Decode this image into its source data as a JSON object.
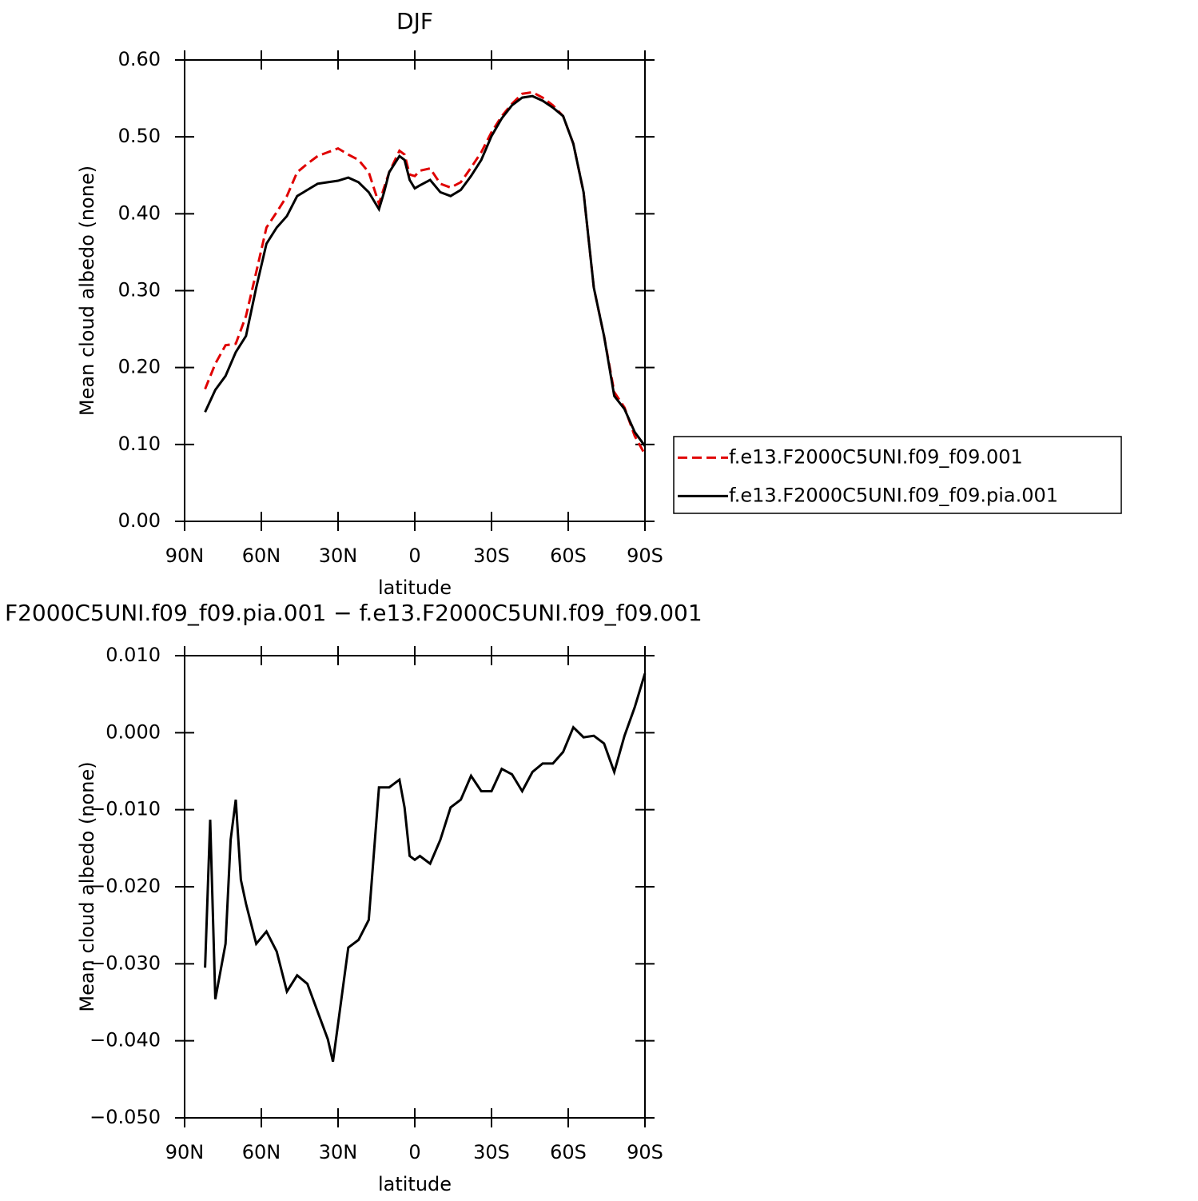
{
  "chart_data": [
    {
      "type": "line",
      "title": "DJF",
      "xlabel": "latitude",
      "ylabel": "Mean cloud albedo (none)",
      "xlim": [
        90,
        -90
      ],
      "xticks": [
        {
          "value": 90,
          "label": "90N"
        },
        {
          "value": 60,
          "label": "60N"
        },
        {
          "value": 30,
          "label": "30N"
        },
        0,
        {
          "value": -30,
          "label": "30S"
        },
        {
          "value": -60,
          "label": "60S"
        },
        {
          "value": -90,
          "label": "90S"
        }
      ],
      "ylim": [
        0,
        0.6
      ],
      "yticks": [
        {
          "value": 0,
          "label": "0.00"
        },
        {
          "value": 0.1,
          "label": "0.10"
        },
        {
          "value": 0.2,
          "label": "0.20"
        },
        {
          "value": 0.3,
          "label": "0.30"
        },
        {
          "value": 0.4,
          "label": "0.40"
        },
        {
          "value": 0.5,
          "label": "0.50"
        },
        {
          "value": 0.6,
          "label": "0.60"
        }
      ],
      "legend": "right",
      "x": [
        82,
        78,
        74,
        70,
        66,
        62,
        58,
        54,
        50,
        46,
        42,
        38,
        34,
        30,
        26,
        22,
        18,
        14,
        12,
        10,
        6,
        4,
        2,
        0,
        -2,
        -6,
        -10,
        -14,
        -18,
        -22,
        -26,
        -30,
        -34,
        -38,
        -42,
        -46,
        -50,
        -54,
        -58,
        -62,
        -66,
        -70,
        -74,
        -78,
        -82,
        -86,
        -90
      ],
      "series": [
        {
          "name": "f.e13.F2000C5UNI.f09_f09.001",
          "color": "#e00000",
          "linestyle": "dashed",
          "values": [
            0.172,
            0.205,
            0.229,
            0.231,
            0.267,
            0.324,
            0.382,
            0.402,
            0.423,
            0.454,
            0.465,
            0.475,
            0.48,
            0.485,
            0.477,
            0.47,
            0.454,
            0.413,
            0.434,
            0.454,
            0.482,
            0.477,
            0.451,
            0.449,
            0.456,
            0.459,
            0.439,
            0.434,
            0.441,
            0.46,
            0.48,
            0.506,
            0.527,
            0.543,
            0.556,
            0.558,
            0.551,
            0.541,
            0.527,
            0.491,
            0.428,
            0.304,
            0.241,
            0.168,
            0.148,
            0.111,
            0.087
          ]
        },
        {
          "name": "f.e13.F2000C5UNI.f09_f09.pia.001",
          "color": "#000000",
          "linestyle": "solid",
          "values": [
            0.142,
            0.171,
            0.189,
            0.22,
            0.241,
            0.304,
            0.361,
            0.382,
            0.397,
            0.423,
            0.431,
            0.439,
            0.441,
            0.443,
            0.447,
            0.441,
            0.428,
            0.406,
            0.428,
            0.454,
            0.475,
            0.47,
            0.444,
            0.433,
            0.437,
            0.444,
            0.428,
            0.423,
            0.431,
            0.449,
            0.47,
            0.501,
            0.524,
            0.541,
            0.551,
            0.553,
            0.547,
            0.538,
            0.527,
            0.491,
            0.428,
            0.304,
            0.241,
            0.163,
            0.146,
            0.116,
            0.098
          ]
        }
      ]
    },
    {
      "type": "line",
      "title": "F2000C5UNI.f09_f09.pia.001 − f.e13.F2000C5UNI.f09_f09.001",
      "xlabel": "latitude",
      "ylabel": "Mean cloud albedo (none)",
      "xlim": [
        90,
        -90
      ],
      "xticks": [
        {
          "value": 90,
          "label": "90N"
        },
        {
          "value": 60,
          "label": "60N"
        },
        {
          "value": 30,
          "label": "30N"
        },
        0,
        {
          "value": -30,
          "label": "30S"
        },
        {
          "value": -60,
          "label": "60S"
        },
        {
          "value": -90,
          "label": "90S"
        }
      ],
      "ylim": [
        -0.05,
        0.01
      ],
      "yticks": [
        {
          "value": -0.05,
          "label": "−0.050"
        },
        {
          "value": -0.04,
          "label": "−0.040"
        },
        {
          "value": -0.03,
          "label": "−0.030"
        },
        {
          "value": -0.02,
          "label": "−0.020"
        },
        {
          "value": -0.01,
          "label": "−0.010"
        },
        {
          "value": 0,
          "label": "0.000"
        },
        {
          "value": 0.01,
          "label": "0.010"
        }
      ],
      "x": [
        82,
        80,
        78,
        76,
        74,
        72,
        70,
        68,
        66,
        62,
        58,
        54,
        50,
        46,
        42,
        38,
        34,
        32,
        30,
        26,
        22,
        18,
        14,
        10,
        6,
        4,
        2,
        0,
        -2,
        -6,
        -10,
        -14,
        -18,
        -22,
        -26,
        -30,
        -34,
        -38,
        -42,
        -46,
        -50,
        -54,
        -58,
        -62,
        -66,
        -70,
        -74,
        -78,
        -82,
        -86,
        -90
      ],
      "series": [
        {
          "color": "#000000",
          "linestyle": "solid",
          "values": [
            -0.0305,
            -0.0113,
            -0.0346,
            -0.031,
            -0.0274,
            -0.0139,
            -0.0087,
            -0.0191,
            -0.0222,
            -0.0274,
            -0.0258,
            -0.0284,
            -0.0336,
            -0.0315,
            -0.0326,
            -0.0362,
            -0.0398,
            -0.0427,
            -0.0378,
            -0.0279,
            -0.0269,
            -0.0243,
            -0.0071,
            -0.0071,
            -0.0061,
            -0.0097,
            -0.016,
            -0.0165,
            -0.016,
            -0.017,
            -0.0139,
            -0.0097,
            -0.0087,
            -0.0056,
            -0.0076,
            -0.0076,
            -0.0047,
            -0.0054,
            -0.0076,
            -0.0051,
            -0.004,
            -0.004,
            -0.0025,
            0.0007,
            -0.0006,
            -0.0004,
            -0.0014,
            -0.0051,
            -0.0004,
            0.0033,
            0.0077
          ]
        }
      ]
    }
  ]
}
